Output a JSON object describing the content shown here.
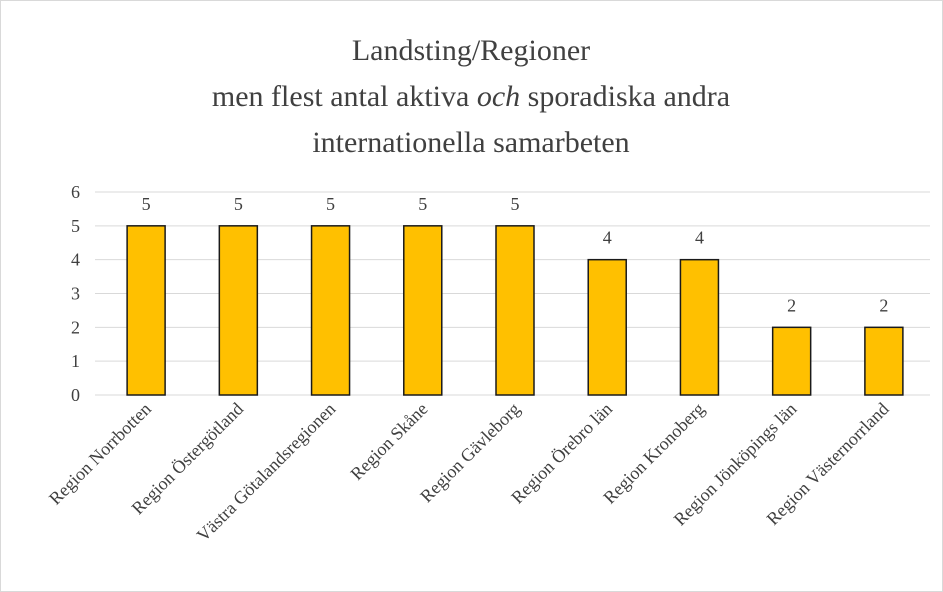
{
  "chart_data": {
    "type": "bar",
    "title": [
      "Landsting/Regioner",
      "men flest antal aktiva",
      "och",
      "sporadiska andra",
      "internationella samarbeten"
    ],
    "categories": [
      "Region Norrbotten",
      "Region Östergötland",
      "Västra Götalandsregionen",
      "Region Skåne",
      "Region Gävleborg",
      "Region Örebro län",
      "Region Kronoberg",
      "Region Jönköpings län",
      "Region Västernorrland"
    ],
    "values": [
      5,
      5,
      5,
      5,
      5,
      4,
      4,
      2,
      2
    ],
    "color": "#ffc000",
    "ylim": [
      0,
      6
    ],
    "yticks": [
      0,
      1,
      2,
      3,
      4,
      5,
      6
    ],
    "grid": true
  }
}
